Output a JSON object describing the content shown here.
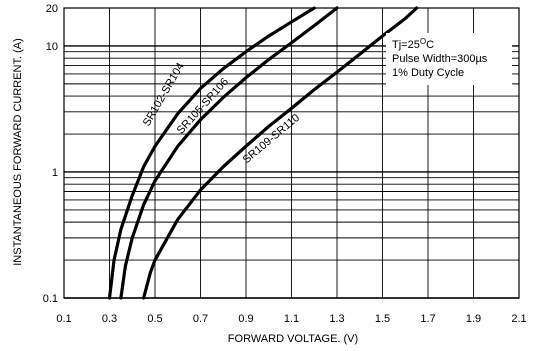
{
  "chart_data": {
    "type": "line",
    "xlabel": "FORWARD VOLTAGE. (V)",
    "ylabel": "INSTANTANEOUS FORWARD CURRENT. (A)",
    "xlim": [
      0.1,
      2.1
    ],
    "ylim": [
      0.1,
      20
    ],
    "yscale": "log",
    "grid": true,
    "x_ticks": [
      "0.1",
      "0.3",
      "0.5",
      "0.7",
      "0.9",
      "1.1",
      "1.3",
      "1.5",
      "1.7",
      "1.9",
      "2.1"
    ],
    "x_tick_values": [
      0.1,
      0.3,
      0.5,
      0.7,
      0.9,
      1.1,
      1.3,
      1.5,
      1.7,
      1.9,
      2.1
    ],
    "y_ticks": [
      "0.1",
      "1",
      "10",
      "20"
    ],
    "y_tick_values": [
      0.1,
      1,
      10,
      20
    ],
    "annotation": {
      "line1_prefix": "Tj=25",
      "line1_sup": "O",
      "line1_suffix": "C",
      "line2": "Pulse Width=300µs",
      "line3": "1% Duty Cycle"
    },
    "series": [
      {
        "name": "SR102-SR104",
        "x": [
          0.3,
          0.32,
          0.35,
          0.4,
          0.45,
          0.5,
          0.6,
          0.7,
          0.8,
          0.9,
          1.0,
          1.1,
          1.2
        ],
        "y": [
          0.1,
          0.2,
          0.35,
          0.65,
          1.1,
          1.6,
          2.9,
          4.6,
          6.6,
          9.0,
          12.0,
          15.5,
          20
        ]
      },
      {
        "name": "SR105-SR106",
        "x": [
          0.35,
          0.37,
          0.4,
          0.45,
          0.5,
          0.6,
          0.7,
          0.8,
          0.9,
          1.0,
          1.1,
          1.2,
          1.3
        ],
        "y": [
          0.1,
          0.18,
          0.3,
          0.55,
          0.85,
          1.6,
          2.6,
          3.9,
          5.6,
          7.8,
          10.6,
          14.5,
          20
        ]
      },
      {
        "name": "SR109-SR110",
        "x": [
          0.45,
          0.48,
          0.5,
          0.6,
          0.7,
          0.8,
          0.9,
          1.0,
          1.1,
          1.2,
          1.3,
          1.4,
          1.5,
          1.6,
          1.65
        ],
        "y": [
          0.1,
          0.16,
          0.2,
          0.42,
          0.72,
          1.1,
          1.6,
          2.3,
          3.2,
          4.5,
          6.2,
          8.6,
          12.0,
          16.5,
          20
        ]
      }
    ]
  }
}
